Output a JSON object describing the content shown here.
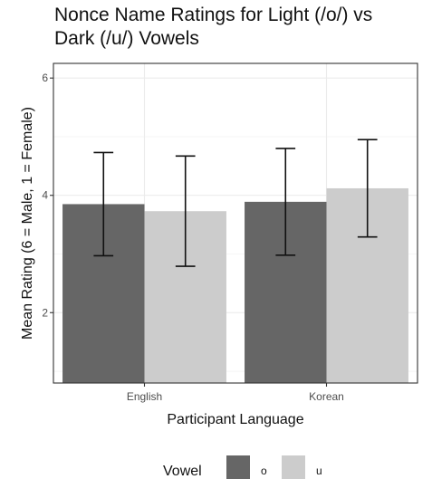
{
  "chart_data": {
    "type": "bar",
    "title": "Nonce Name Ratings for Light (/o/) vs\nDark (/u/) Vowels",
    "xlabel": "Participant Language",
    "ylabel": "Mean Rating (6 = Male, 1 = Female)",
    "categories": [
      "English",
      "Korean"
    ],
    "ylim": [
      0.8,
      6.25
    ],
    "yticks": [
      2,
      4,
      6
    ],
    "grid": true,
    "legend": {
      "title": "Vowel",
      "placement": "bottom"
    },
    "series": [
      {
        "name": "o",
        "color": "#666666",
        "values": [
          3.85,
          3.89
        ],
        "error_low": [
          2.97,
          2.98
        ],
        "error_high": [
          4.73,
          4.8
        ]
      },
      {
        "name": "u",
        "color": "#cccccc",
        "values": [
          3.73,
          4.12
        ],
        "error_low": [
          2.79,
          3.29
        ],
        "error_high": [
          4.67,
          4.95
        ]
      }
    ]
  }
}
